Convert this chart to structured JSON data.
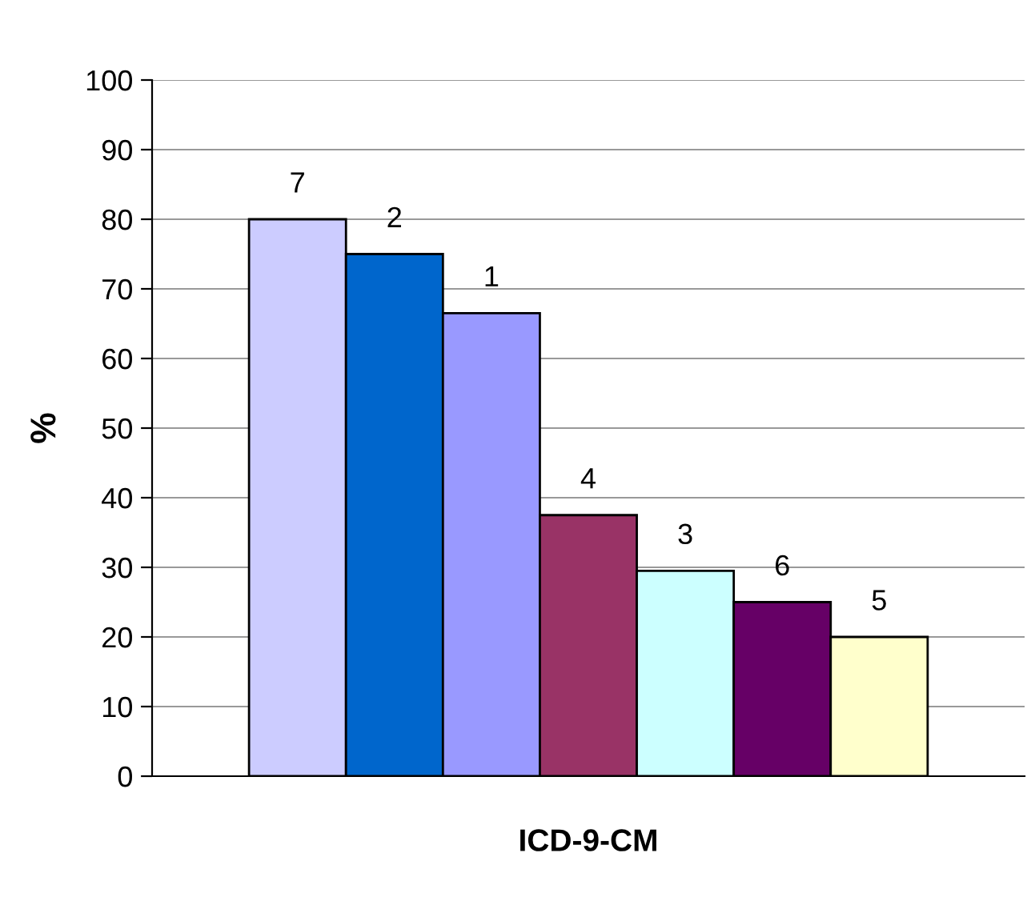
{
  "chart_data": {
    "type": "bar",
    "xlabel": "ICD-9-CM",
    "ylabel": "%",
    "categories": [
      null,
      null,
      null,
      null,
      null,
      null,
      null,
      null,
      null
    ],
    "series": [
      {
        "name": "7",
        "color": "#ccccff",
        "values": [
          null,
          80,
          null,
          null,
          null,
          null,
          null,
          null,
          null
        ]
      },
      {
        "name": "2",
        "color": "#0066cc",
        "values": [
          null,
          null,
          75,
          null,
          null,
          null,
          null,
          null,
          null
        ]
      },
      {
        "name": "1",
        "color": "#9999ff",
        "values": [
          null,
          null,
          null,
          66.5,
          null,
          null,
          null,
          null,
          null
        ]
      },
      {
        "name": "4",
        "color": "#993366",
        "values": [
          null,
          null,
          null,
          null,
          37.5,
          null,
          null,
          null,
          null
        ]
      },
      {
        "name": "3",
        "color": "#ccffff",
        "values": [
          null,
          null,
          null,
          null,
          null,
          29.5,
          null,
          null,
          null
        ]
      },
      {
        "name": "6",
        "color": "#660066",
        "values": [
          null,
          null,
          null,
          null,
          null,
          null,
          25,
          null,
          null
        ]
      },
      {
        "name": "5",
        "color": "#ffffcc",
        "values": [
          null,
          null,
          null,
          null,
          null,
          null,
          null,
          20,
          null
        ]
      }
    ],
    "ylim": [
      0,
      100
    ],
    "yticks": [
      0,
      10,
      20,
      30,
      40,
      50,
      60,
      70,
      80,
      90,
      100
    ],
    "grid": "y",
    "legend": false
  }
}
